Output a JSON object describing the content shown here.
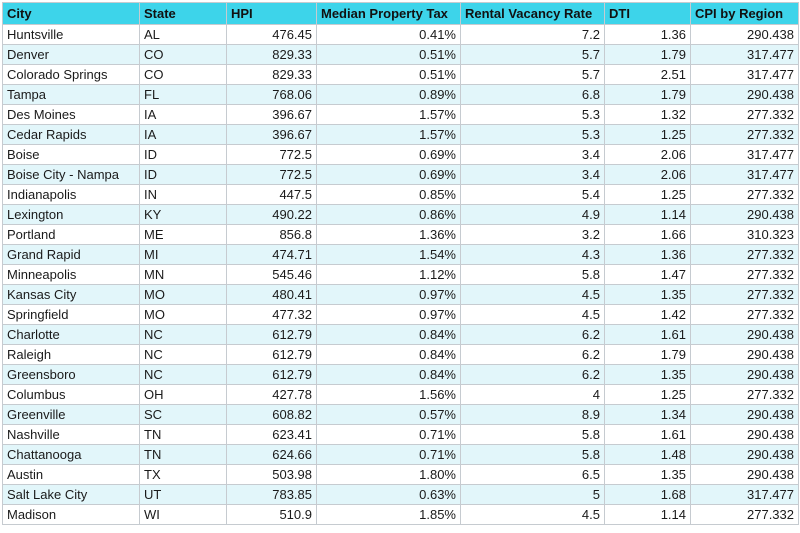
{
  "colors": {
    "header_bg": "#3dd4ea",
    "band_bg": "#e2f6fa",
    "grid": "#c6cbd0"
  },
  "columns": [
    "City",
    "State",
    "HPI",
    "Median Property Tax",
    "Rental Vacancy Rate",
    "DTI",
    "CPI by Region"
  ],
  "rows": [
    [
      "Huntsville",
      "AL",
      "476.45",
      "0.41%",
      "7.2",
      "1.36",
      "290.438"
    ],
    [
      "Denver",
      "CO",
      "829.33",
      "0.51%",
      "5.7",
      "1.79",
      "317.477"
    ],
    [
      "Colorado Springs",
      "CO",
      "829.33",
      "0.51%",
      "5.7",
      "2.51",
      "317.477"
    ],
    [
      "Tampa",
      "FL",
      "768.06",
      "0.89%",
      "6.8",
      "1.79",
      "290.438"
    ],
    [
      "Des Moines",
      "IA",
      "396.67",
      "1.57%",
      "5.3",
      "1.32",
      "277.332"
    ],
    [
      "Cedar Rapids",
      "IA",
      "396.67",
      "1.57%",
      "5.3",
      "1.25",
      "277.332"
    ],
    [
      "Boise",
      "ID",
      "772.5",
      "0.69%",
      "3.4",
      "2.06",
      "317.477"
    ],
    [
      "Boise City - Nampa",
      "ID",
      "772.5",
      "0.69%",
      "3.4",
      "2.06",
      "317.477"
    ],
    [
      "Indianapolis",
      "IN",
      "447.5",
      "0.85%",
      "5.4",
      "1.25",
      "277.332"
    ],
    [
      "Lexington",
      "KY",
      "490.22",
      "0.86%",
      "4.9",
      "1.14",
      "290.438"
    ],
    [
      "Portland",
      "ME",
      "856.8",
      "1.36%",
      "3.2",
      "1.66",
      "310.323"
    ],
    [
      "Grand Rapid",
      "MI",
      "474.71",
      "1.54%",
      "4.3",
      "1.36",
      "277.332"
    ],
    [
      "Minneapolis",
      "MN",
      "545.46",
      "1.12%",
      "5.8",
      "1.47",
      "277.332"
    ],
    [
      "Kansas City",
      "MO",
      "480.41",
      "0.97%",
      "4.5",
      "1.35",
      "277.332"
    ],
    [
      "Springfield",
      "MO",
      "477.32",
      "0.97%",
      "4.5",
      "1.42",
      "277.332"
    ],
    [
      "Charlotte",
      "NC",
      "612.79",
      "0.84%",
      "6.2",
      "1.61",
      "290.438"
    ],
    [
      "Raleigh",
      "NC",
      "612.79",
      "0.84%",
      "6.2",
      "1.79",
      "290.438"
    ],
    [
      "Greensboro",
      "NC",
      "612.79",
      "0.84%",
      "6.2",
      "1.35",
      "290.438"
    ],
    [
      "Columbus",
      "OH",
      "427.78",
      "1.56%",
      "4",
      "1.25",
      "277.332"
    ],
    [
      "Greenville",
      "SC",
      "608.82",
      "0.57%",
      "8.9",
      "1.34",
      "290.438"
    ],
    [
      "Nashville",
      "TN",
      "623.41",
      "0.71%",
      "5.8",
      "1.61",
      "290.438"
    ],
    [
      "Chattanooga",
      "TN",
      "624.66",
      "0.71%",
      "5.8",
      "1.48",
      "290.438"
    ],
    [
      "Austin",
      "TX",
      "503.98",
      "1.80%",
      "6.5",
      "1.35",
      "290.438"
    ],
    [
      "Salt Lake City",
      "UT",
      "783.85",
      "0.63%",
      "5",
      "1.68",
      "317.477"
    ],
    [
      "Madison",
      "WI",
      "510.9",
      "1.85%",
      "4.5",
      "1.14",
      "277.332"
    ]
  ]
}
